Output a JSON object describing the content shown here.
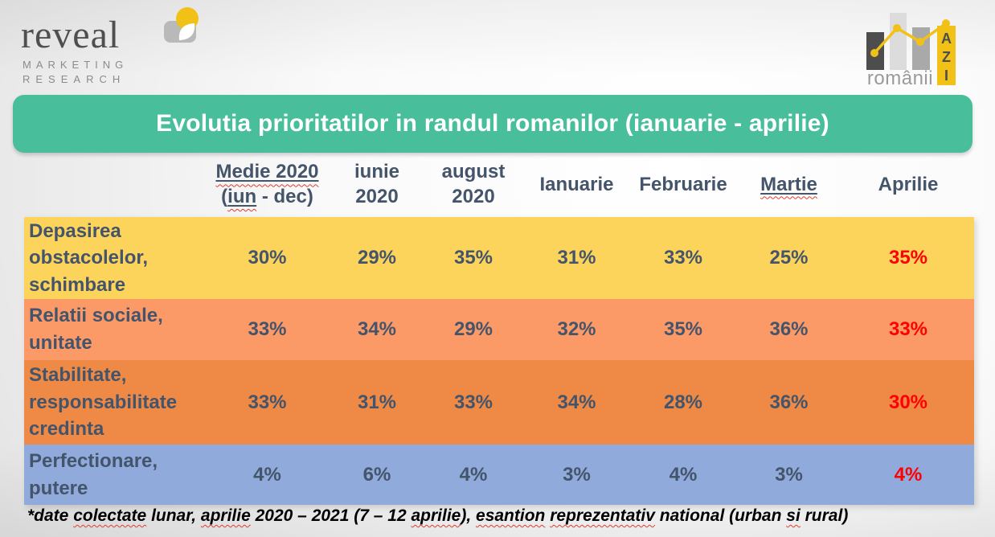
{
  "colors": {
    "banner_teal": "#48BE9B",
    "header_text": "#44546A",
    "cell_text": "#44546A",
    "highlight_red": "#FF0000",
    "row_yellow": "#FCD45B",
    "row_salmon": "#FC9A67",
    "row_orange": "#EE8A46",
    "row_blue": "#8FAADB",
    "logo_yellow": "#F2C118",
    "spellcheck_red": "#E03C2D"
  },
  "logos": {
    "reveal": {
      "wordmark": "reveal",
      "sub_line1": "MARKETING",
      "sub_line2": "RESEARCH"
    },
    "romanii_azi": {
      "wordmark": "românii",
      "badge_letters": [
        "A",
        "Z",
        "I"
      ]
    }
  },
  "title": "Evolutia prioritatilor in randul romanilor (ianuarie - aprilie)",
  "chart_data": {
    "type": "table",
    "title": "Evolutia prioritatilor in randul romanilor (ianuarie - aprilie)",
    "columns": [
      "Medie 2020 (iun - dec)",
      "iunie 2020",
      "august 2020",
      "Ianuarie",
      "Februarie",
      "Martie",
      "Aprilie"
    ],
    "rows": [
      {
        "label": "Depasirea obstacolelor, schimbare",
        "values": [
          "30%",
          "29%",
          "35%",
          "31%",
          "33%",
          "25%",
          "35%"
        ],
        "color": "#FCD45B"
      },
      {
        "label": "Relatii sociale, unitate",
        "values": [
          "33%",
          "34%",
          "29%",
          "32%",
          "35%",
          "36%",
          "33%"
        ],
        "color": "#FC9A67"
      },
      {
        "label": "Stabilitate, responsabilitate credinta",
        "values": [
          "33%",
          "31%",
          "33%",
          "34%",
          "28%",
          "36%",
          "30%"
        ],
        "color": "#EE8A46"
      },
      {
        "label": "Perfectionare, putere",
        "values": [
          "4%",
          "6%",
          "4%",
          "3%",
          "4%",
          "3%",
          "4%"
        ],
        "color": "#8FAADB"
      }
    ],
    "last_column_highlight_color": "#FF0000",
    "notes": "Aprilie column values rendered in red"
  },
  "table_render": {
    "columns": [
      {
        "lines": [
          [
            {
              "t": "Medie 2020",
              "u": true
            }
          ],
          [
            {
              "t": "(",
              "u": false
            },
            {
              "t": "iun",
              "u": true
            },
            {
              "t": " - dec)",
              "u": false
            }
          ]
        ]
      },
      {
        "lines": [
          [
            {
              "t": "iunie",
              "u": false
            }
          ],
          [
            {
              "t": "2020",
              "u": false
            }
          ]
        ]
      },
      {
        "lines": [
          [
            {
              "t": "august",
              "u": false
            }
          ],
          [
            {
              "t": "2020",
              "u": false
            }
          ]
        ]
      },
      {
        "lines": [
          [
            {
              "t": "Ianuarie",
              "u": false
            }
          ]
        ]
      },
      {
        "lines": [
          [
            {
              "t": "Februarie",
              "u": false
            }
          ]
        ]
      },
      {
        "lines": [
          [
            {
              "t": "Martie",
              "u": true
            }
          ]
        ]
      },
      {
        "lines": [
          [
            {
              "t": "Aprilie",
              "u": false
            }
          ]
        ]
      }
    ]
  },
  "footnote": {
    "full_text": "*date colectate lunar, aprilie 2020 – 2021 (7 – 12 aprilie), esantion reprezentativ national (urban si rural)",
    "parts": [
      {
        "text": "*date ",
        "wavy": false
      },
      {
        "text": "colectate",
        "wavy": true
      },
      {
        "text": " lunar, ",
        "wavy": false
      },
      {
        "text": "aprilie",
        "wavy": true
      },
      {
        "text": " 2020 – 2021 (7 – 12 ",
        "wavy": false
      },
      {
        "text": "aprilie",
        "wavy": true
      },
      {
        "text": "), ",
        "wavy": false
      },
      {
        "text": "esantion",
        "wavy": true
      },
      {
        "text": " ",
        "wavy": false
      },
      {
        "text": "reprezentativ",
        "wavy": true
      },
      {
        "text": " national (urban ",
        "wavy": false
      },
      {
        "text": "si",
        "wavy": true
      },
      {
        "text": " rural)",
        "wavy": false
      }
    ]
  }
}
